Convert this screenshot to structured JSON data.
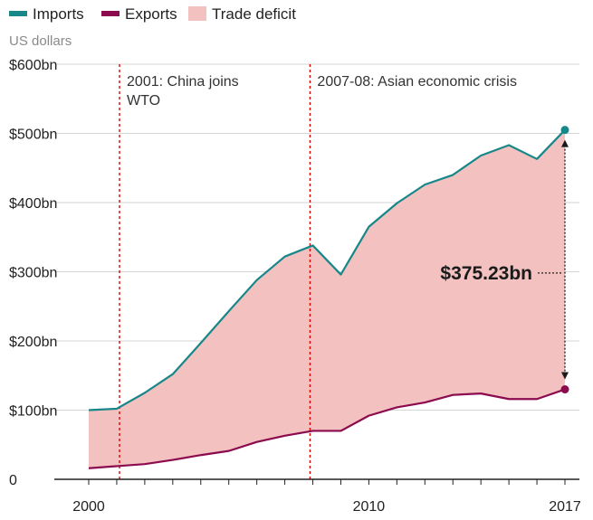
{
  "colors": {
    "imports": "#17878a",
    "exports": "#8c0b4f",
    "deficit": "#f2c1c0",
    "annotation_line": "#e00000",
    "grid": "#d6d6d6",
    "axis": "#222222"
  },
  "legend": [
    {
      "key": "imports",
      "label": "Imports"
    },
    {
      "key": "exports",
      "label": "Exports"
    },
    {
      "key": "deficit",
      "label": "Trade deficit"
    }
  ],
  "chart_data": {
    "type": "area",
    "ylabel": "US dollars",
    "x": [
      2000,
      2001,
      2002,
      2003,
      2004,
      2005,
      2006,
      2007,
      2008,
      2009,
      2010,
      2011,
      2012,
      2013,
      2014,
      2015,
      2016,
      2017
    ],
    "series": [
      {
        "name": "Imports",
        "key": "imports",
        "values": [
          100,
          102,
          125,
          152,
          197,
          243,
          288,
          322,
          338,
          296,
          365,
          399,
          426,
          440,
          468,
          483,
          463,
          505
        ]
      },
      {
        "name": "Exports",
        "key": "exports",
        "values": [
          16,
          19,
          22,
          28,
          35,
          41,
          54,
          63,
          70,
          70,
          92,
          104,
          111,
          122,
          124,
          116,
          116,
          130
        ]
      }
    ],
    "fill_between": {
      "label": "Trade deficit",
      "upper": "imports",
      "lower": "exports"
    },
    "ylim": [
      0,
      600
    ],
    "y_ticks": [
      {
        "value": 0,
        "label": "0"
      },
      {
        "value": 100,
        "label": "$100bn"
      },
      {
        "value": 200,
        "label": "$200bn"
      },
      {
        "value": 300,
        "label": "$300bn"
      },
      {
        "value": 400,
        "label": "$400bn"
      },
      {
        "value": 500,
        "label": "$500bn"
      },
      {
        "value": 600,
        "label": "$600bn"
      }
    ],
    "x_ticks": [
      {
        "value": 2000,
        "label": "2000"
      },
      {
        "value": 2010,
        "label": "2010"
      },
      {
        "value": 2017,
        "label": "2017"
      }
    ],
    "xlim": [
      2000,
      2017
    ],
    "grid": true,
    "legend_position": "top-left",
    "annotations": [
      {
        "x": 2001.1,
        "lines": [
          "2001: China joins",
          "WTO"
        ]
      },
      {
        "x": 2007.9,
        "lines": [
          "2007-08: Asian economic crisis"
        ]
      }
    ],
    "gap_annotation": {
      "x": 2017,
      "label": "$375.23bn",
      "value": 375.23
    }
  }
}
